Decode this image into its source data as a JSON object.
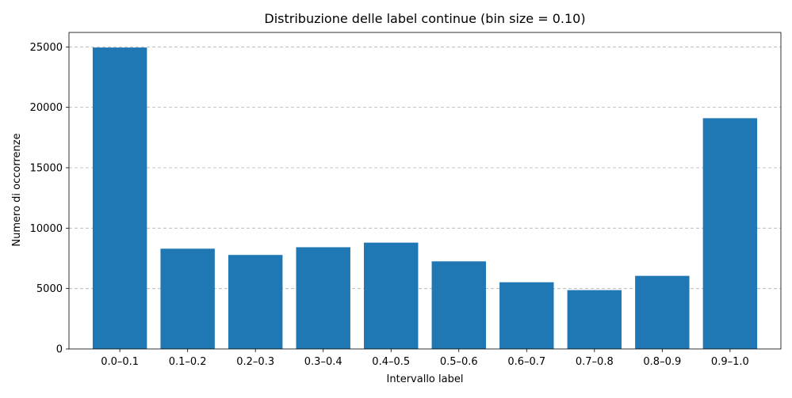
{
  "chart_data": {
    "type": "bar",
    "title": "Distribuzione delle label continue (bin size = 0.10)",
    "xlabel": "Intervallo label",
    "ylabel": "Numero di occorrenze",
    "categories": [
      "0.0–0.1",
      "0.1–0.2",
      "0.2–0.3",
      "0.3–0.4",
      "0.4–0.5",
      "0.5–0.6",
      "0.6–0.7",
      "0.7–0.8",
      "0.8–0.9",
      "0.9–1.0"
    ],
    "values": [
      24950,
      8300,
      7780,
      8420,
      8800,
      7250,
      5520,
      4870,
      6050,
      19100
    ],
    "ylim": [
      0,
      26200
    ],
    "yticks": [
      0,
      5000,
      10000,
      15000,
      20000,
      25000
    ],
    "grid": "y-dashed",
    "legend": "none",
    "bar_color": "#1f77b4",
    "grid_color": "#b0b0b0"
  }
}
